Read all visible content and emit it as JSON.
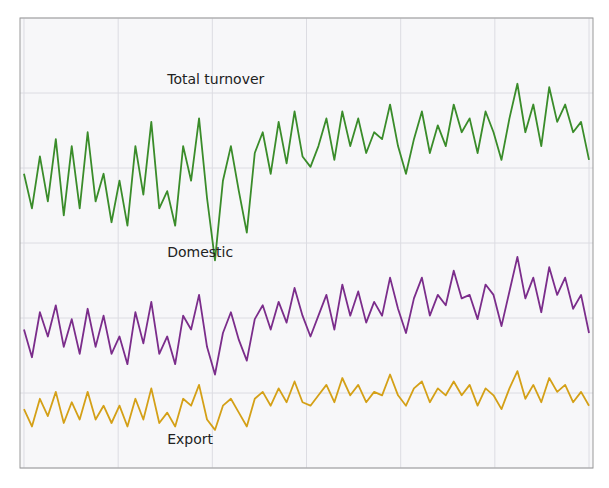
{
  "chart_data": {
    "type": "line",
    "x": [
      0,
      1,
      2,
      3,
      4,
      5,
      6,
      7,
      8,
      9,
      10,
      11,
      12,
      13,
      14,
      15,
      16,
      17,
      18,
      19,
      20,
      21,
      22,
      23,
      24,
      25,
      26,
      27,
      28,
      29,
      30,
      31,
      32,
      33,
      34,
      35,
      36,
      37,
      38,
      39,
      40,
      41,
      42,
      43,
      44,
      45,
      46,
      47,
      48,
      49,
      50,
      51,
      52,
      53,
      54,
      55,
      56,
      57,
      58,
      59,
      60,
      61,
      62,
      63,
      64,
      65,
      66,
      67,
      68,
      69,
      70,
      71
    ],
    "series": [
      {
        "color": "#3a8c2a",
        "values": [
          100,
          90,
          105,
          92,
          110,
          88,
          108,
          90,
          112,
          92,
          100,
          86,
          98,
          85,
          108,
          94,
          115,
          90,
          95,
          85,
          108,
          98,
          116,
          93,
          75,
          98,
          108,
          95,
          83,
          106,
          112,
          100,
          115,
          103,
          118,
          105,
          102,
          108,
          116,
          104,
          118,
          108,
          116,
          106,
          112,
          110,
          120,
          108,
          100,
          110,
          118,
          106,
          114,
          108,
          120,
          112,
          116,
          106,
          118,
          112,
          104,
          116,
          126,
          112,
          120,
          108,
          125,
          115,
          120,
          112,
          115,
          104
        ]
      },
      {
        "color": "#7b2d8b",
        "values": [
          55,
          47,
          60,
          53,
          62,
          50,
          58,
          48,
          61,
          50,
          59,
          48,
          53,
          45,
          60,
          51,
          63,
          48,
          53,
          45,
          59,
          55,
          65,
          50,
          42,
          54,
          60,
          52,
          46,
          58,
          62,
          55,
          63,
          57,
          67,
          59,
          53,
          59,
          65,
          55,
          68,
          59,
          66,
          57,
          63,
          59,
          70,
          61,
          54,
          64,
          70,
          59,
          65,
          62,
          72,
          64,
          65,
          58,
          68,
          65,
          56,
          66,
          76,
          64,
          70,
          60,
          73,
          65,
          70,
          61,
          65,
          54
        ]
      },
      {
        "color": "#d4a017",
        "values": [
          32,
          27,
          35,
          30,
          37,
          28,
          34,
          29,
          37,
          29,
          33,
          28,
          33,
          27,
          35,
          29,
          38,
          28,
          31,
          27,
          35,
          33,
          39,
          29,
          26,
          33,
          35,
          31,
          27,
          35,
          37,
          33,
          38,
          34,
          40,
          34,
          33,
          36,
          39,
          34,
          41,
          36,
          39,
          34,
          37,
          36,
          42,
          36,
          33,
          38,
          40,
          34,
          38,
          36,
          40,
          36,
          39,
          33,
          38,
          36,
          32,
          38,
          43,
          35,
          39,
          34,
          41,
          37,
          39,
          34,
          37,
          33
        ]
      }
    ],
    "annotations": [
      {
        "text": "Total turnover",
        "x": 18,
        "y": 126
      },
      {
        "text": "Domestic",
        "x": 18,
        "y": 76
      },
      {
        "text": "Export",
        "x": 18,
        "y": 22
      }
    ],
    "xlim": [
      -0.5,
      71.5
    ],
    "xticks": [
      0,
      11.833333333333334,
      23.666666666666668,
      35.5,
      47.333333333333336,
      59.16666666666667,
      71
    ],
    "ylim": [
      15,
      145
    ],
    "yticks": [
      15,
      36.666666666666664,
      58.333333333333336,
      80,
      101.66666666666667,
      123.33333333333334,
      145
    ],
    "grid": true,
    "tick_labels": false
  }
}
